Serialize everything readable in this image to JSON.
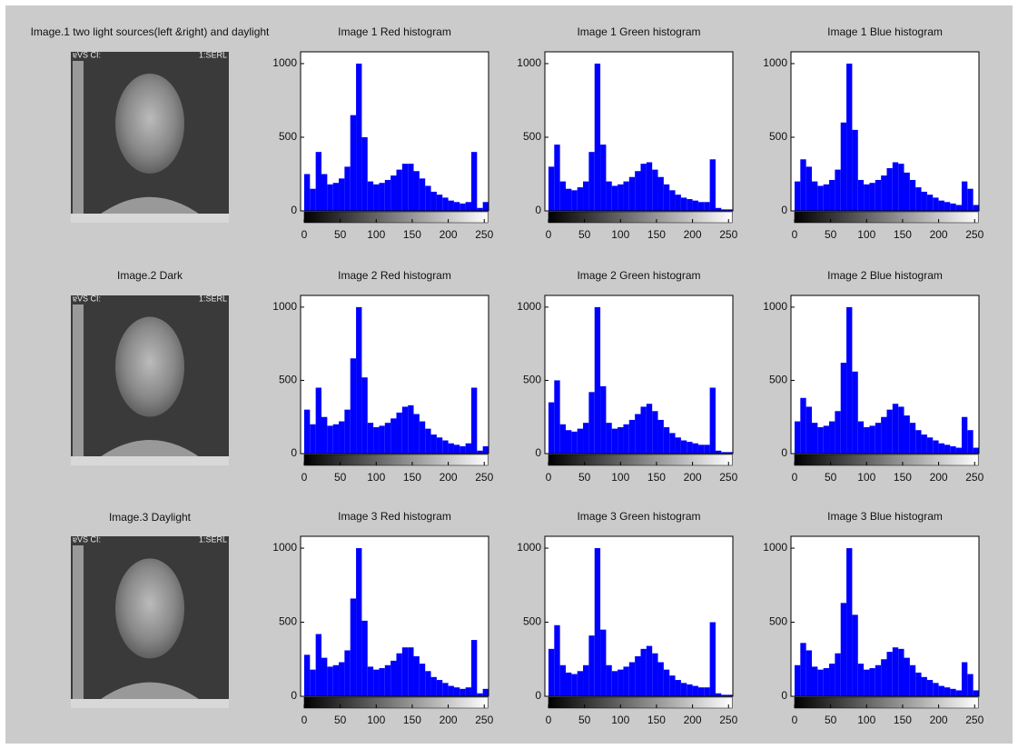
{
  "images": [
    {
      "title": "Image.1 two light sources(left &right) and daylight",
      "caption_left": "ɐVS CI:",
      "caption_right": "1:SERL"
    },
    {
      "title": "Image.2 Dark",
      "caption_left": "ɐVS CI:",
      "caption_right": "1:SERL"
    },
    {
      "title": "Image.3 Daylight",
      "caption_left": "ɐVS CI:",
      "caption_right": "1:SERL"
    }
  ],
  "chart_data": [
    {
      "type": "histogram",
      "title": "Image 1 Red histogram",
      "color": "#0000ff",
      "bins": [
        0,
        8,
        16,
        24,
        32,
        40,
        48,
        56,
        64,
        72,
        80,
        88,
        96,
        104,
        112,
        120,
        128,
        136,
        144,
        152,
        160,
        168,
        176,
        184,
        192,
        200,
        208,
        216,
        224,
        232,
        240,
        248,
        256
      ],
      "values": [
        250,
        150,
        400,
        250,
        180,
        190,
        220,
        300,
        650,
        1000,
        500,
        200,
        180,
        190,
        210,
        240,
        280,
        320,
        320,
        270,
        220,
        170,
        130,
        110,
        90,
        70,
        60,
        50,
        60,
        400,
        20,
        60
      ],
      "xlim": [
        -5,
        256
      ],
      "ylim": [
        0,
        1080
      ],
      "xticks": [
        0,
        50,
        100,
        150,
        200,
        250
      ],
      "yticks": [
        0,
        500,
        1000
      ]
    },
    {
      "type": "histogram",
      "title": "Image 1 Green histogram",
      "color": "#0000ff",
      "bins": [
        0,
        8,
        16,
        24,
        32,
        40,
        48,
        56,
        64,
        72,
        80,
        88,
        96,
        104,
        112,
        120,
        128,
        136,
        144,
        152,
        160,
        168,
        176,
        184,
        192,
        200,
        208,
        216,
        224,
        232,
        240,
        248,
        256
      ],
      "values": [
        300,
        450,
        200,
        150,
        140,
        160,
        200,
        400,
        1000,
        450,
        200,
        170,
        180,
        200,
        230,
        270,
        320,
        330,
        280,
        230,
        180,
        140,
        110,
        90,
        80,
        70,
        60,
        60,
        350,
        20,
        10,
        10
      ],
      "xlim": [
        -5,
        256
      ],
      "ylim": [
        0,
        1080
      ],
      "xticks": [
        0,
        50,
        100,
        150,
        200,
        250
      ],
      "yticks": [
        0,
        500,
        1000
      ]
    },
    {
      "type": "histogram",
      "title": "Image 1 Blue histogram",
      "color": "#0000ff",
      "bins": [
        0,
        8,
        16,
        24,
        32,
        40,
        48,
        56,
        64,
        72,
        80,
        88,
        96,
        104,
        112,
        120,
        128,
        136,
        144,
        152,
        160,
        168,
        176,
        184,
        192,
        200,
        208,
        216,
        224,
        232,
        240,
        248,
        256
      ],
      "values": [
        200,
        350,
        300,
        200,
        170,
        180,
        210,
        280,
        600,
        1000,
        550,
        210,
        180,
        190,
        210,
        240,
        290,
        330,
        320,
        260,
        210,
        160,
        130,
        110,
        90,
        70,
        60,
        50,
        40,
        200,
        150,
        40
      ],
      "xlim": [
        -5,
        256
      ],
      "ylim": [
        0,
        1080
      ],
      "xticks": [
        0,
        50,
        100,
        150,
        200,
        250
      ],
      "yticks": [
        0,
        500,
        1000
      ]
    },
    {
      "type": "histogram",
      "title": "Image 2 Red histogram",
      "color": "#0000ff",
      "bins": [
        0,
        8,
        16,
        24,
        32,
        40,
        48,
        56,
        64,
        72,
        80,
        88,
        96,
        104,
        112,
        120,
        128,
        136,
        144,
        152,
        160,
        168,
        176,
        184,
        192,
        200,
        208,
        216,
        224,
        232,
        240,
        248,
        256
      ],
      "values": [
        300,
        200,
        450,
        250,
        190,
        200,
        220,
        300,
        650,
        1000,
        520,
        210,
        180,
        190,
        210,
        240,
        280,
        320,
        330,
        270,
        220,
        170,
        130,
        110,
        90,
        70,
        60,
        50,
        70,
        450,
        20,
        50
      ],
      "xlim": [
        -5,
        256
      ],
      "ylim": [
        0,
        1080
      ],
      "xticks": [
        0,
        50,
        100,
        150,
        200,
        250
      ],
      "yticks": [
        0,
        500,
        1000
      ]
    },
    {
      "type": "histogram",
      "title": "Image 2 Green histogram",
      "color": "#0000ff",
      "bins": [
        0,
        8,
        16,
        24,
        32,
        40,
        48,
        56,
        64,
        72,
        80,
        88,
        96,
        104,
        112,
        120,
        128,
        136,
        144,
        152,
        160,
        168,
        176,
        184,
        192,
        200,
        208,
        216,
        224,
        232,
        240,
        248,
        256
      ],
      "values": [
        350,
        500,
        200,
        160,
        150,
        170,
        210,
        420,
        1000,
        460,
        210,
        170,
        180,
        200,
        230,
        270,
        320,
        340,
        290,
        230,
        180,
        140,
        110,
        90,
        80,
        70,
        60,
        60,
        450,
        20,
        10,
        10
      ],
      "xlim": [
        -5,
        256
      ],
      "ylim": [
        0,
        1080
      ],
      "xticks": [
        0,
        50,
        100,
        150,
        200,
        250
      ],
      "yticks": [
        0,
        500,
        1000
      ]
    },
    {
      "type": "histogram",
      "title": "Image 2 Blue histogram",
      "color": "#0000ff",
      "bins": [
        0,
        8,
        16,
        24,
        32,
        40,
        48,
        56,
        64,
        72,
        80,
        88,
        96,
        104,
        112,
        120,
        128,
        136,
        144,
        152,
        160,
        168,
        176,
        184,
        192,
        200,
        208,
        216,
        224,
        232,
        240,
        248,
        256
      ],
      "values": [
        220,
        380,
        320,
        210,
        180,
        190,
        220,
        290,
        620,
        1000,
        560,
        220,
        180,
        190,
        210,
        250,
        300,
        340,
        320,
        260,
        210,
        160,
        130,
        110,
        90,
        70,
        60,
        50,
        40,
        250,
        160,
        40
      ],
      "xlim": [
        -5,
        256
      ],
      "ylim": [
        0,
        1080
      ],
      "xticks": [
        0,
        50,
        100,
        150,
        200,
        250
      ],
      "yticks": [
        0,
        500,
        1000
      ]
    },
    {
      "type": "histogram",
      "title": "Image 3 Red histogram",
      "color": "#0000ff",
      "bins": [
        0,
        8,
        16,
        24,
        32,
        40,
        48,
        56,
        64,
        72,
        80,
        88,
        96,
        104,
        112,
        120,
        128,
        136,
        144,
        152,
        160,
        168,
        176,
        184,
        192,
        200,
        208,
        216,
        224,
        232,
        240,
        248,
        256
      ],
      "values": [
        280,
        180,
        420,
        260,
        200,
        210,
        230,
        310,
        660,
        1000,
        510,
        200,
        180,
        190,
        210,
        240,
        290,
        330,
        330,
        270,
        220,
        170,
        130,
        110,
        90,
        70,
        60,
        50,
        60,
        380,
        20,
        50
      ],
      "xlim": [
        -5,
        256
      ],
      "ylim": [
        0,
        1080
      ],
      "xticks": [
        0,
        50,
        100,
        150,
        200,
        250
      ],
      "yticks": [
        0,
        500,
        1000
      ]
    },
    {
      "type": "histogram",
      "title": "Image 3 Green histogram",
      "color": "#0000ff",
      "bins": [
        0,
        8,
        16,
        24,
        32,
        40,
        48,
        56,
        64,
        72,
        80,
        88,
        96,
        104,
        112,
        120,
        128,
        136,
        144,
        152,
        160,
        168,
        176,
        184,
        192,
        200,
        208,
        216,
        224,
        232,
        240,
        248,
        256
      ],
      "values": [
        320,
        480,
        210,
        160,
        150,
        170,
        210,
        410,
        1000,
        450,
        210,
        170,
        180,
        200,
        230,
        270,
        320,
        340,
        290,
        230,
        180,
        140,
        110,
        90,
        80,
        70,
        60,
        60,
        500,
        20,
        10,
        10
      ],
      "xlim": [
        -5,
        256
      ],
      "ylim": [
        0,
        1080
      ],
      "xticks": [
        0,
        50,
        100,
        150,
        200,
        250
      ],
      "yticks": [
        0,
        500,
        1000
      ]
    },
    {
      "type": "histogram",
      "title": "Image 3 Blue histogram",
      "color": "#0000ff",
      "bins": [
        0,
        8,
        16,
        24,
        32,
        40,
        48,
        56,
        64,
        72,
        80,
        88,
        96,
        104,
        112,
        120,
        128,
        136,
        144,
        152,
        160,
        168,
        176,
        184,
        192,
        200,
        208,
        216,
        224,
        232,
        240,
        248,
        256
      ],
      "values": [
        210,
        360,
        310,
        200,
        180,
        190,
        220,
        290,
        630,
        1000,
        550,
        220,
        180,
        190,
        210,
        250,
        300,
        330,
        320,
        260,
        210,
        160,
        130,
        110,
        90,
        70,
        60,
        50,
        40,
        230,
        150,
        40
      ],
      "xlim": [
        -5,
        256
      ],
      "ylim": [
        0,
        1080
      ],
      "xticks": [
        0,
        50,
        100,
        150,
        200,
        250
      ],
      "yticks": [
        0,
        500,
        1000
      ]
    }
  ]
}
